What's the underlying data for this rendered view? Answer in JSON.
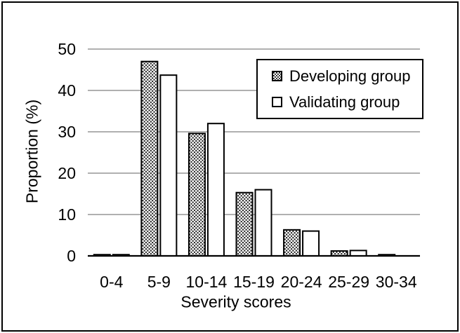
{
  "figure": {
    "background": "#ffffff",
    "border_color": "#000000"
  },
  "chart_data": {
    "type": "bar",
    "title": "",
    "xlabel": "Severity scores",
    "ylabel": "Proportion (%)",
    "categories": [
      "0-4",
      "5-9",
      "10-14",
      "15-19",
      "20-24",
      "25-29",
      "30-34"
    ],
    "series": [
      {
        "name": "Developing group",
        "fill": "dot-pattern",
        "values": [
          0.3,
          47,
          29.6,
          15.3,
          6.3,
          1.2,
          0.3
        ]
      },
      {
        "name": "Validating group",
        "fill": "white",
        "values": [
          0.3,
          43.7,
          32,
          16,
          6,
          1.3,
          0
        ]
      }
    ],
    "ylim": [
      0,
      50
    ],
    "yticks": [
      0,
      10,
      20,
      30,
      40,
      50
    ],
    "grid": true,
    "legend_position": "top-right",
    "colors": {
      "gridline": "#808080",
      "axis_line": "#000000",
      "bar_border": "#000000",
      "pattern_dot": "#111111",
      "text": "#000000"
    }
  }
}
